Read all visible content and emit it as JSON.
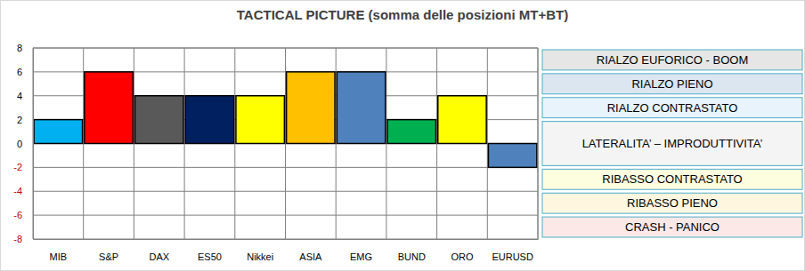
{
  "chart_data": {
    "type": "bar",
    "title": "TACTICAL PICTURE (somma delle posizioni MT+BT)",
    "categories": [
      "MIB",
      "S&P",
      "DAX",
      "ES50",
      "Nikkei",
      "ASIA",
      "EMG",
      "BUND",
      "ORO",
      "EURUSD"
    ],
    "values": [
      2,
      6,
      4,
      4,
      4,
      6,
      6,
      2,
      4,
      -2
    ],
    "colors": [
      "#00b0f0",
      "#ff0000",
      "#595959",
      "#002060",
      "#ffff00",
      "#ffc000",
      "#4f81bd",
      "#00b050",
      "#ffff00",
      "#4f81bd"
    ],
    "ylim": [
      -8,
      8
    ],
    "yticks": [
      -8,
      -6,
      -4,
      -2,
      0,
      2,
      4,
      6,
      8
    ],
    "grid": true,
    "annotations": [
      {
        "text": "RIALZO EUFORICO - BOOM",
        "y_range": [
          6,
          8
        ],
        "color": "#e7e6e6"
      },
      {
        "text": "RIALZO PIENO",
        "y_range": [
          4,
          6
        ],
        "color": "#dce6f1"
      },
      {
        "text": "RIALZO CONTRASTATO",
        "y_range": [
          2,
          4
        ],
        "color": "#e8f3fb"
      },
      {
        "text": "LATERALITA’ – IMPRODUTTIVITA’",
        "y_range": [
          -2,
          2
        ],
        "color": "#f4f4f4"
      },
      {
        "text": "RIBASSO CONTRASTATO",
        "y_range": [
          -4,
          -2
        ],
        "color": "#fdfde0"
      },
      {
        "text": "RIBASSO PIENO",
        "y_range": [
          -6,
          -4
        ],
        "color": "#fff6e0"
      },
      {
        "text": "CRASH - PANICO",
        "y_range": [
          -8,
          -6
        ],
        "color": "#fde8e8"
      }
    ]
  }
}
